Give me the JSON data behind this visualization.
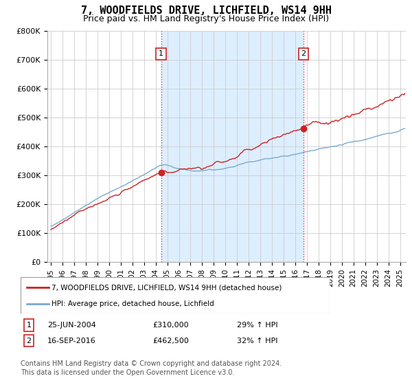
{
  "title": "7, WOODFIELDS DRIVE, LICHFIELD, WS14 9HH",
  "subtitle": "Price paid vs. HM Land Registry's House Price Index (HPI)",
  "ylim": [
    0,
    800000
  ],
  "yticks": [
    0,
    100000,
    200000,
    300000,
    400000,
    500000,
    600000,
    700000,
    800000
  ],
  "ytick_labels": [
    "£0",
    "£100K",
    "£200K",
    "£300K",
    "£400K",
    "£500K",
    "£600K",
    "£700K",
    "£800K"
  ],
  "xlim_start": 1994.7,
  "xlim_end": 2025.5,
  "red_line_color": "#cc2222",
  "blue_line_color": "#7aaad0",
  "shade_color": "#ddeeff",
  "transaction1_x": 2004.48,
  "transaction1_y": 310000,
  "transaction2_x": 2016.71,
  "transaction2_y": 462500,
  "transaction1_label": "25-JUN-2004",
  "transaction1_price": "£310,000",
  "transaction1_hpi": "29% ↑ HPI",
  "transaction2_label": "16-SEP-2016",
  "transaction2_price": "£462,500",
  "transaction2_hpi": "32% ↑ HPI",
  "legend_red_label": "7, WOODFIELDS DRIVE, LICHFIELD, WS14 9HH (detached house)",
  "legend_blue_label": "HPI: Average price, detached house, Lichfield",
  "footer": "Contains HM Land Registry data © Crown copyright and database right 2024.\nThis data is licensed under the Open Government Licence v3.0.",
  "background_color": "#ffffff",
  "grid_color": "#cccccc",
  "title_fontsize": 11,
  "subtitle_fontsize": 9,
  "tick_fontsize": 8,
  "legend_fontsize": 8,
  "footer_fontsize": 7
}
